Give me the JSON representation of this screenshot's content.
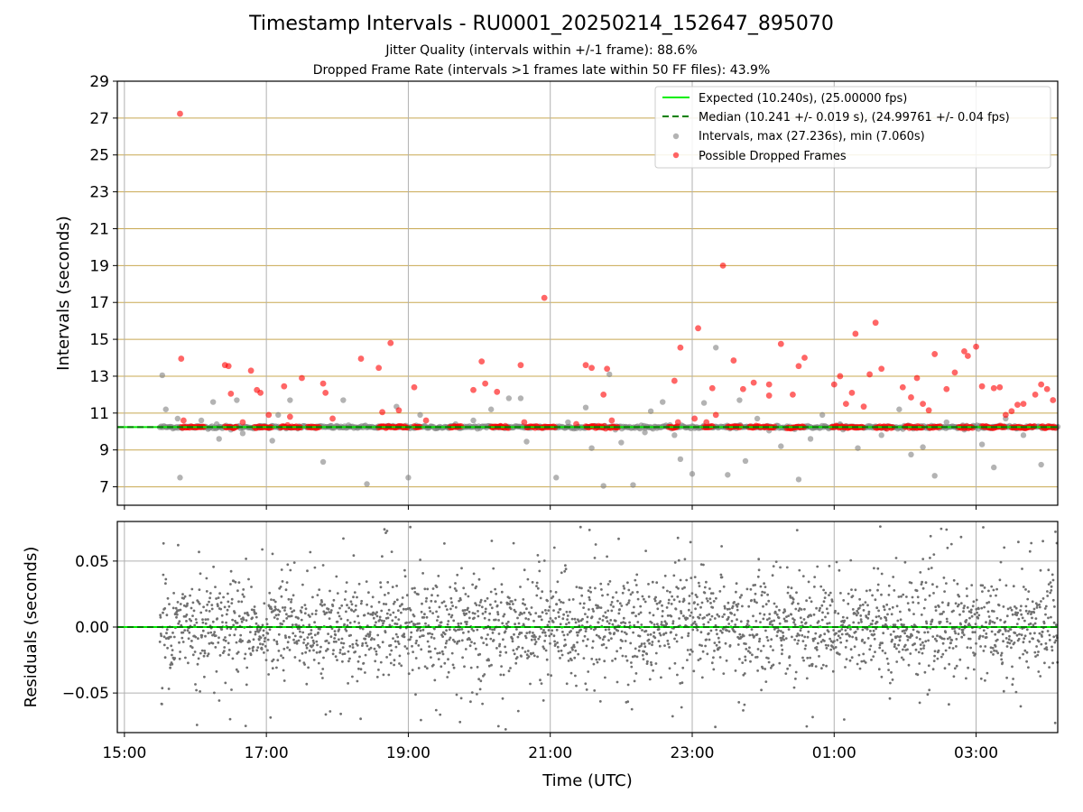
{
  "header": {
    "title": "Timestamp Intervals - RU0001_20250214_152647_895070",
    "subtitle_1": "Jitter Quality (intervals within +/-1 frame): 88.6%",
    "subtitle_2": "Dropped Frame Rate (intervals >1 frames late within 50 FF files): 43.9%"
  },
  "colors": {
    "expected": "#00ee00",
    "median": "#008000",
    "intervals": "#808080",
    "dropped": "#ff0000",
    "hgrid_top": "#c8a850",
    "grid": "#b0b0b0",
    "residuals": "#707070"
  },
  "chart_data": [
    {
      "type": "scatter",
      "name": "intervals_panel",
      "ylabel": "Intervals (seconds)",
      "xlim": [
        "14:54",
        "04:09"
      ],
      "ylim": [
        6.0,
        29.0
      ],
      "yticks": [
        7,
        9,
        11,
        13,
        15,
        17,
        19,
        21,
        23,
        25,
        27,
        29
      ],
      "grid": true,
      "legend_position": "top-right",
      "legend": [
        "Expected (10.240s), (25.00000 fps)",
        "Median (10.241 +/- 0.019 s), (24.99761 +/- 0.04 fps)",
        "Intervals, max (27.236s), min (7.060s)",
        "Possible Dropped Frames"
      ],
      "expected_value": 10.24,
      "median_value": 10.241,
      "data_start": "15:30",
      "data_end": "04:09",
      "baseline_interval": 10.24,
      "intervals_outliers": {
        "x": [
          "15:32",
          "15:35",
          "15:45",
          "15:47",
          "16:05",
          "16:15",
          "16:18",
          "16:20",
          "16:30",
          "16:35",
          "16:40",
          "17:05",
          "17:10",
          "17:20",
          "17:48",
          "17:55",
          "18:05",
          "18:25",
          "18:42",
          "18:50",
          "19:00",
          "19:10",
          "19:25",
          "19:40",
          "19:55",
          "20:10",
          "20:25",
          "20:35",
          "20:40",
          "21:05",
          "21:15",
          "21:30",
          "21:35",
          "21:45",
          "21:50",
          "22:00",
          "22:10",
          "22:20",
          "22:25",
          "22:35",
          "22:45",
          "22:50",
          "23:00",
          "23:10",
          "23:20",
          "23:30",
          "23:40",
          "23:45",
          "23:55",
          "00:05",
          "00:15",
          "00:30",
          "00:40",
          "00:50",
          "01:05",
          "01:20",
          "01:30",
          "01:40",
          "01:55",
          "02:05",
          "02:15",
          "02:25",
          "02:35",
          "02:50",
          "03:05",
          "03:15",
          "03:25",
          "03:40",
          "03:55",
          "04:05"
        ],
        "y": [
          13.05,
          11.2,
          10.7,
          7.5,
          10.6,
          11.6,
          10.4,
          9.6,
          10.1,
          11.7,
          9.9,
          9.5,
          10.9,
          11.7,
          8.35,
          10.3,
          11.7,
          7.15,
          10.3,
          11.35,
          7.5,
          10.9,
          10.2,
          10.4,
          10.6,
          11.2,
          11.8,
          11.8,
          9.45,
          7.5,
          10.5,
          11.3,
          9.1,
          7.05,
          13.1,
          9.4,
          7.1,
          9.95,
          11.1,
          11.6,
          9.8,
          8.5,
          7.7,
          11.55,
          14.55,
          7.65,
          11.7,
          8.4,
          10.7,
          10.05,
          9.2,
          7.4,
          9.6,
          10.9,
          10.4,
          9.1,
          10.3,
          9.8,
          11.2,
          8.75,
          9.15,
          7.6,
          10.5,
          10.1,
          9.3,
          8.05,
          10.7,
          9.8,
          8.2,
          10.2
        ]
      },
      "dropped_frames": {
        "x": [
          "15:47",
          "15:48",
          "15:50",
          "16:25",
          "16:28",
          "16:30",
          "16:40",
          "16:47",
          "16:52",
          "16:55",
          "17:02",
          "17:15",
          "17:20",
          "17:30",
          "17:48",
          "17:50",
          "17:56",
          "18:20",
          "18:35",
          "18:38",
          "18:45",
          "18:52",
          "19:05",
          "19:15",
          "19:55",
          "20:02",
          "20:05",
          "20:15",
          "20:18",
          "20:35",
          "20:38",
          "20:55",
          "21:22",
          "21:30",
          "21:35",
          "21:45",
          "21:48",
          "21:52",
          "22:45",
          "22:48",
          "22:50",
          "23:02",
          "23:05",
          "23:12",
          "23:17",
          "23:20",
          "23:26",
          "23:35",
          "23:43",
          "23:52",
          "24:05",
          "24:05",
          "24:15",
          "24:25",
          "24:30",
          "24:35",
          "25:00",
          "25:05",
          "25:10",
          "25:15",
          "25:18",
          "25:25",
          "25:30",
          "25:35",
          "25:40",
          "25:58",
          "26:05",
          "26:10",
          "26:15",
          "26:20",
          "26:25",
          "26:35",
          "26:42",
          "26:50",
          "26:53",
          "27:00",
          "27:05",
          "27:15",
          "27:20",
          "27:25",
          "27:30",
          "27:35",
          "27:40",
          "27:50",
          "27:55",
          "28:00",
          "28:05"
        ],
        "y": [
          27.236,
          13.95,
          10.6,
          13.6,
          13.55,
          12.05,
          10.5,
          13.3,
          12.25,
          12.1,
          10.9,
          12.45,
          10.8,
          12.9,
          12.6,
          12.1,
          10.7,
          13.95,
          13.45,
          11.05,
          14.8,
          11.15,
          12.4,
          10.6,
          12.25,
          13.8,
          12.6,
          12.15,
          10.3,
          13.6,
          10.5,
          17.25,
          10.4,
          13.6,
          13.45,
          12.0,
          13.4,
          10.6,
          12.75,
          10.5,
          14.55,
          10.7,
          15.6,
          10.5,
          12.35,
          10.9,
          19.0,
          13.85,
          12.3,
          12.65,
          11.95,
          12.55,
          14.75,
          12.0,
          13.55,
          14.0,
          12.55,
          13.0,
          11.5,
          12.1,
          15.3,
          11.35,
          13.1,
          15.9,
          13.4,
          12.4,
          11.85,
          12.9,
          11.5,
          11.15,
          14.2,
          12.3,
          13.2,
          14.35,
          14.1,
          14.6,
          12.45,
          12.35,
          12.4,
          10.9,
          11.1,
          11.45,
          11.5,
          12.0,
          12.55,
          12.3,
          11.7
        ]
      }
    },
    {
      "type": "scatter",
      "name": "residuals_panel",
      "ylabel": "Residuals (seconds)",
      "xlabel": "Time (UTC)",
      "xlim": [
        "14:54",
        "04:09"
      ],
      "ylim": [
        -0.08,
        0.08
      ],
      "yticks": [
        -0.05,
        0.0,
        0.05
      ],
      "ytick_labels": [
        "−0.05",
        "0.00",
        "0.05"
      ],
      "xticks": [
        "15:00",
        "17:00",
        "19:00",
        "21:00",
        "23:00",
        "01:00",
        "03:00"
      ],
      "grid": true,
      "zero_line": 0.0,
      "residual_spread": 0.06
    }
  ]
}
